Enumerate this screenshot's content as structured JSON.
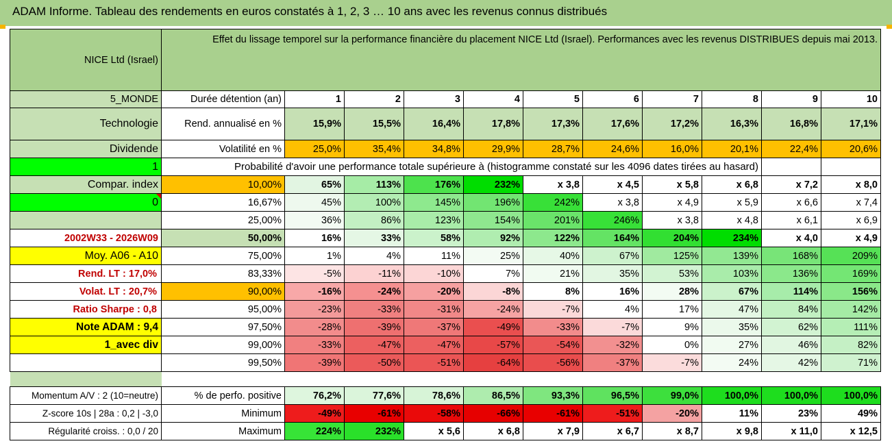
{
  "title": "ADAM Informe. Tableau des rendements en euros constatés à 1, 2, 3 … 10 ans avec les revenus connus distribués",
  "header": {
    "fund": "NICE Ltd (Israel)",
    "desc": "Effet du lissage temporel sur la performance financière du placement NICE Ltd (Israel). Performances avec les revenus DISTRIBUES depuis mai 2013."
  },
  "side": {
    "zone": "5_MONDE",
    "sector": "Technologie",
    "dividend": "Dividende",
    "one": "1",
    "compar": "Compar. index",
    "zero": "0",
    "period": "2002W33 - 2026W09",
    "moy": "Moy. A06 - A10",
    "rend_lt": "Rend. LT :   17,0%",
    "volat_lt": "Volat. LT :   20,7%",
    "sharpe": "Ratio Sharpe :   0,8",
    "note": "Note ADAM : 9,4",
    "avec_div": "1_avec div",
    "momentum": "Momentum A/V : 2 (10=neutre)",
    "zscore": "Z-score 10s | 28a : 0,2 | -3,0",
    "regul": "Régularité croiss. : 0,0 / 20"
  },
  "labels": {
    "duree": "Durée détention (an)",
    "rend": "Rend. annualisé en %",
    "vol": "Volatilité en %",
    "proba": "Probabilité d'avoir une performance totale supérieure à (histogramme constaté sur les 4096 dates tirées au hasard)",
    "pos": "% de perfo. positive",
    "min": "Minimum",
    "max": "Maximum"
  },
  "years": [
    "1",
    "2",
    "3",
    "4",
    "5",
    "6",
    "7",
    "8",
    "9",
    "10"
  ],
  "rend": [
    "15,9%",
    "15,5%",
    "16,4%",
    "17,8%",
    "17,3%",
    "17,6%",
    "17,2%",
    "16,3%",
    "16,8%",
    "17,1%"
  ],
  "vol": [
    "25,0%",
    "35,4%",
    "34,8%",
    "29,9%",
    "28,7%",
    "24,6%",
    "16,0%",
    "20,1%",
    "22,4%",
    "20,6%"
  ],
  "prob_rows": [
    {
      "p": "10,00%",
      "v": [
        "65%",
        "113%",
        "176%",
        "232%",
        "x 3,8",
        "x 4,5",
        "x 5,8",
        "x 6,8",
        "x 7,2",
        "x 8,0"
      ]
    },
    {
      "p": "16,67%",
      "v": [
        "45%",
        "100%",
        "145%",
        "196%",
        "242%",
        "x 3,8",
        "x 4,9",
        "x 5,9",
        "x 6,6",
        "x 7,4"
      ]
    },
    {
      "p": "25,00%",
      "v": [
        "36%",
        "86%",
        "123%",
        "154%",
        "201%",
        "246%",
        "x 3,8",
        "x 4,8",
        "x 6,1",
        "x 6,9"
      ]
    },
    {
      "p": "50,00%",
      "v": [
        "16%",
        "33%",
        "58%",
        "92%",
        "122%",
        "164%",
        "204%",
        "234%",
        "x 4,0",
        "x 4,9"
      ]
    },
    {
      "p": "75,00%",
      "v": [
        "1%",
        "4%",
        "11%",
        "25%",
        "40%",
        "67%",
        "125%",
        "139%",
        "168%",
        "209%"
      ]
    },
    {
      "p": "83,33%",
      "v": [
        "-5%",
        "-11%",
        "-10%",
        "7%",
        "21%",
        "35%",
        "53%",
        "103%",
        "136%",
        "169%"
      ]
    },
    {
      "p": "90,00%",
      "v": [
        "-16%",
        "-24%",
        "-20%",
        "-8%",
        "8%",
        "16%",
        "28%",
        "67%",
        "114%",
        "156%"
      ]
    },
    {
      "p": "95,00%",
      "v": [
        "-23%",
        "-33%",
        "-31%",
        "-24%",
        "-7%",
        "4%",
        "17%",
        "47%",
        "84%",
        "142%"
      ]
    },
    {
      "p": "97,50%",
      "v": [
        "-28%",
        "-39%",
        "-37%",
        "-49%",
        "-33%",
        "-7%",
        "9%",
        "35%",
        "62%",
        "111%"
      ]
    },
    {
      "p": "99,00%",
      "v": [
        "-33%",
        "-47%",
        "-47%",
        "-57%",
        "-54%",
        "-32%",
        "0%",
        "27%",
        "46%",
        "82%"
      ]
    },
    {
      "p": "99,50%",
      "v": [
        "-39%",
        "-50%",
        "-51%",
        "-64%",
        "-56%",
        "-37%",
        "-7%",
        "24%",
        "42%",
        "71%"
      ]
    }
  ],
  "pos": [
    "76,2%",
    "77,6%",
    "78,6%",
    "86,5%",
    "93,3%",
    "96,5%",
    "99,0%",
    "100,0%",
    "100,0%",
    "100,0%"
  ],
  "min": [
    "-49%",
    "-61%",
    "-58%",
    "-66%",
    "-61%",
    "-51%",
    "-20%",
    "11%",
    "23%",
    "49%"
  ],
  "max": [
    "224%",
    "232%",
    "x 5,6",
    "x 6,8",
    "x 7,9",
    "x 6,7",
    "x 8,7",
    "x 9,8",
    "x 11,0",
    "x 12,5"
  ],
  "colors": {
    "prob": [
      [
        "#e2f5e2",
        "#a6eca6",
        "#4de24d",
        "#00dd00",
        "#ffffff",
        "#ffffff",
        "#ffffff",
        "#ffffff",
        "#ffffff",
        "#ffffff"
      ],
      [
        "#eef9ee",
        "#b3edb3",
        "#8ee98e",
        "#72e572",
        "#38e038",
        "#ffffff",
        "#ffffff",
        "#ffffff",
        "#ffffff",
        "#ffffff"
      ],
      [
        "#f3fbf3",
        "#c3f0c3",
        "#a9eca9",
        "#8fe78f",
        "#6ae46a",
        "#38e038",
        "#ffffff",
        "#ffffff",
        "#ffffff",
        "#ffffff"
      ],
      [
        "#ffffff",
        "#e5f7e5",
        "#cbf2cb",
        "#b0edb0",
        "#8de88d",
        "#64e364",
        "#32df32",
        "#00dd00",
        "#ffffff",
        "#ffffff"
      ],
      [
        "#ffffff",
        "#ffffff",
        "#ffffff",
        "#f3fbf3",
        "#e6f8e6",
        "#cdf2cd",
        "#a0ea9f",
        "#92e892",
        "#78e478",
        "#56e156"
      ],
      [
        "#fde4e4",
        "#fcd2d2",
        "#fcd6d6",
        "#ffffff",
        "#f1fbf1",
        "#e2f6e2",
        "#d2f3d2",
        "#a9ecaa",
        "#8be88b",
        "#74e674"
      ],
      [
        "#f8a8a8",
        "#f59090",
        "#f6a0a0",
        "#fbd6d6",
        "#ffffff",
        "#ffffff",
        "#f3fbf3",
        "#cbf2cb",
        "#a7ecaa",
        "#8ae889"
      ],
      [
        "#f39a9a",
        "#f08080",
        "#f18888",
        "#f6a3a3",
        "#fbd9d9",
        "#ffffff",
        "#ffffff",
        "#e4f7e4",
        "#c2f0c2",
        "#a5eba5"
      ],
      [
        "#f28c8c",
        "#ee7070",
        "#ef7878",
        "#ea4f4f",
        "#f28c8c",
        "#fbdada",
        "#ffffff",
        "#ebf9eb",
        "#d2f3d2",
        "#b5eeb5"
      ],
      [
        "#f18080",
        "#ec6060",
        "#ec6060",
        "#e84848",
        "#ea5656",
        "#f29090",
        "#ffffff",
        "#f1fbf1",
        "#e1f6e1",
        "#c5f0c5"
      ],
      [
        "#f07575",
        "#eb5a5a",
        "#eb5555",
        "#e64040",
        "#e94d4d",
        "#f08080",
        "#fbdcdc",
        "#f3fbf3",
        "#e5f7e5",
        "#cff2cf"
      ]
    ],
    "pos": [
      "#def6de",
      "#dbf5db",
      "#d7f4d7",
      "#aeecae",
      "#7fe67f",
      "#5fe25f",
      "#3ddf3d",
      "#1edd1e",
      "#1edd1e",
      "#1edd1e"
    ],
    "min": [
      "#ee1c1c",
      "#e80000",
      "#ea0a0a",
      "#e60000",
      "#e80000",
      "#ee1c1c",
      "#f4a2a2",
      "#ffffff",
      "#ffffff",
      "#ffffff"
    ],
    "max": [
      "#37e437",
      "#2ae02a",
      "#ffffff",
      "#ffffff",
      "#ffffff",
      "#ffffff",
      "#ffffff",
      "#ffffff",
      "#ffffff",
      "#ffffff"
    ]
  }
}
